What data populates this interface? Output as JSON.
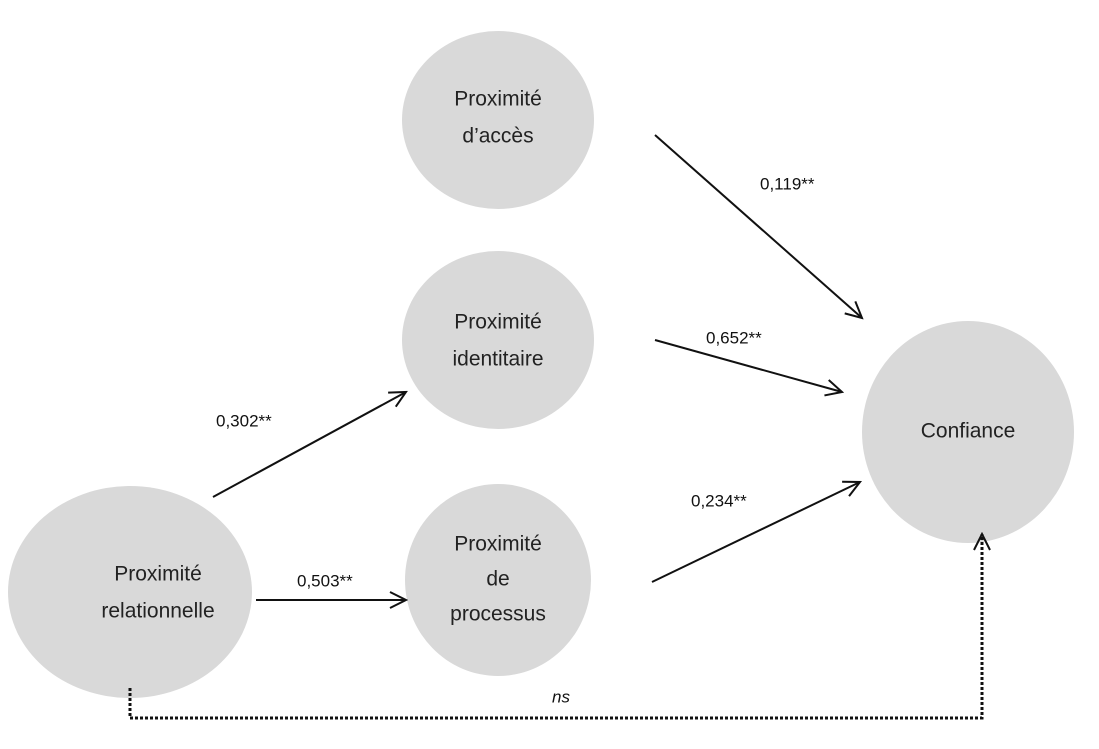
{
  "nodes": [
    {
      "id": "acces",
      "lines": [
        "Proximité",
        "d’accès"
      ]
    },
    {
      "id": "identitaire",
      "lines": [
        "Proximité",
        "identitaire"
      ]
    },
    {
      "id": "processus",
      "lines": [
        "Proximité",
        "de",
        "processus"
      ]
    },
    {
      "id": "relationnelle",
      "lines": [
        "Proximité",
        "relationnelle"
      ]
    },
    {
      "id": "confiance",
      "lines": [
        "Confiance"
      ]
    }
  ],
  "edges": [
    {
      "from": "acces",
      "to": "confiance",
      "label": "0,119**"
    },
    {
      "from": "identitaire",
      "to": "confiance",
      "label": "0,652**"
    },
    {
      "from": "relationnelle",
      "to": "identitaire",
      "label": "0,302**"
    },
    {
      "from": "relationnelle",
      "to": "processus",
      "label": "0,503**"
    },
    {
      "from": "processus",
      "to": "confiance",
      "label": "0,234**"
    },
    {
      "from": "relationnelle",
      "to": "confiance",
      "label": "ns"
    }
  ]
}
